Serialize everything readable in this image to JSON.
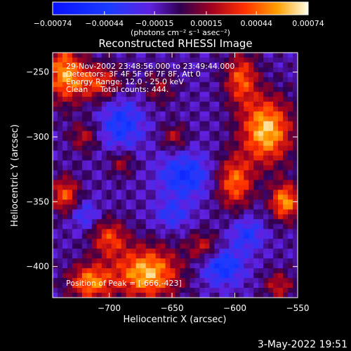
{
  "chart_data": {
    "type": "heatmap",
    "title": "Reconstructed RHESSI Image",
    "xlabel": "Heliocentric X (arcsec)",
    "ylabel": "Heliocentric Y (arcsec)",
    "xlim": [
      -745,
      -550
    ],
    "ylim": [
      -424,
      -235
    ],
    "x_ticks": [
      {
        "value": -700,
        "label": "−700"
      },
      {
        "value": -650,
        "label": "−650"
      },
      {
        "value": -600,
        "label": "−600"
      },
      {
        "value": -550,
        "label": "−550"
      }
    ],
    "y_ticks": [
      {
        "value": -250,
        "label": "−250"
      },
      {
        "value": -300,
        "label": "−300"
      },
      {
        "value": -350,
        "label": "−350"
      },
      {
        "value": -400,
        "label": "−400"
      }
    ],
    "colorbar": {
      "min": -0.00074,
      "max": 0.00074,
      "ticks": [
        {
          "value": -0.00074,
          "label": "−0.00074"
        },
        {
          "value": -0.00044,
          "label": "−0.00044"
        },
        {
          "value": -0.00015,
          "label": "−0.00015"
        },
        {
          "value": 0.00015,
          "label": "0.00015"
        },
        {
          "value": 0.00044,
          "label": "0.00044"
        },
        {
          "value": 0.00074,
          "label": "0.00074"
        }
      ],
      "unit_label": "(photons cm⁻² s⁻¹ asec⁻²)"
    },
    "annotations": [
      "29-Nov-2002 23:48:56.000 to 23:49:44.000",
      "Detectors: 3F 4F 5F 6F 7F 8F, Att 0",
      "Energy Range: 12.0 - 25.0 keV",
      "Clean     Total counts: 444.",
      "Position of Peak = [-666,-423]"
    ],
    "peak": {
      "x": -666,
      "y": -423
    },
    "hotspots": [
      {
        "x": -736,
        "y": -250,
        "v": 0.0006,
        "sx": 10,
        "sy": 16
      },
      {
        "x": -710,
        "y": -258,
        "v": 0.00045,
        "sx": 14,
        "sy": 10
      },
      {
        "x": -720,
        "y": -300,
        "v": 0.0003,
        "sx": 8,
        "sy": 8
      },
      {
        "x": -735,
        "y": -345,
        "v": 0.0005,
        "sx": 8,
        "sy": 10
      },
      {
        "x": -660,
        "y": -262,
        "v": 0.00025,
        "sx": 9,
        "sy": 9
      },
      {
        "x": -648,
        "y": -300,
        "v": 0.0003,
        "sx": 7,
        "sy": 7
      },
      {
        "x": -690,
        "y": -320,
        "v": 0.00028,
        "sx": 7,
        "sy": 7
      },
      {
        "x": -575,
        "y": -295,
        "v": 0.00074,
        "sx": 14,
        "sy": 18
      },
      {
        "x": -595,
        "y": -255,
        "v": 0.0005,
        "sx": 9,
        "sy": 14
      },
      {
        "x": -600,
        "y": -335,
        "v": 0.00055,
        "sx": 10,
        "sy": 14
      },
      {
        "x": -560,
        "y": -350,
        "v": 0.00065,
        "sx": 8,
        "sy": 10
      },
      {
        "x": -625,
        "y": -385,
        "v": 0.00035,
        "sx": 9,
        "sy": 8
      },
      {
        "x": -670,
        "y": -405,
        "v": 0.00072,
        "sx": 18,
        "sy": 14
      },
      {
        "x": -715,
        "y": -412,
        "v": 0.0006,
        "sx": 12,
        "sy": 10
      },
      {
        "x": -700,
        "y": -378,
        "v": 0.00045,
        "sx": 10,
        "sy": 10
      },
      {
        "x": -565,
        "y": -415,
        "v": 0.00035,
        "sx": 8,
        "sy": 8
      },
      {
        "x": -690,
        "y": -290,
        "v": -0.00035,
        "sx": 12,
        "sy": 14
      },
      {
        "x": -640,
        "y": -330,
        "v": -0.0004,
        "sx": 14,
        "sy": 12
      },
      {
        "x": -610,
        "y": -400,
        "v": -0.0004,
        "sx": 12,
        "sy": 10
      },
      {
        "x": -720,
        "y": -360,
        "v": -0.00025,
        "sx": 8,
        "sy": 8
      },
      {
        "x": -590,
        "y": -375,
        "v": -0.0003,
        "sx": 9,
        "sy": 9
      },
      {
        "x": -650,
        "y": -360,
        "v": -0.00025,
        "sx": 10,
        "sy": 8
      }
    ],
    "background": -0.0001
  },
  "footer": {
    "timestamp": "3-May-2022 19:51"
  }
}
